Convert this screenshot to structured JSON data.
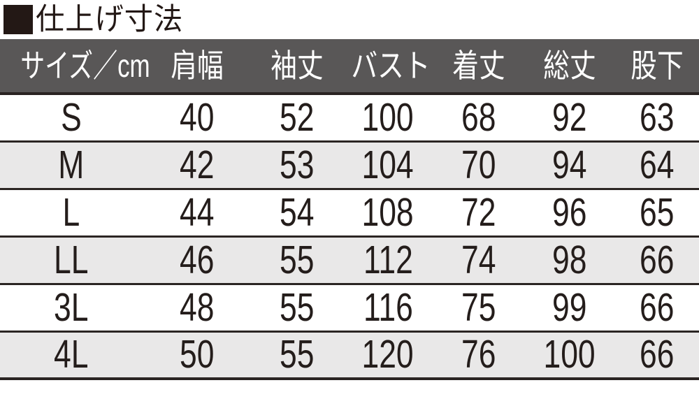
{
  "header": {
    "marker": "■",
    "title": "仕上げ寸法"
  },
  "colors": {
    "title_text": "#231815",
    "table_header_bg": "#595757",
    "table_header_text": "#ffffff",
    "row_bg_white": "#ffffff",
    "row_bg_alt": "#e9e8e8",
    "separator_line": "#2b2523",
    "value_text": "#241d1b"
  },
  "chart_data": {
    "type": "table",
    "title": "仕上げ寸法",
    "unit": "cm",
    "columns": [
      "サイズ／cm",
      "肩幅",
      "袖丈",
      "バスト",
      "着丈",
      "総丈",
      "股下"
    ],
    "rows": [
      [
        "S",
        "40",
        "52",
        "100",
        "68",
        "92",
        "63"
      ],
      [
        "M",
        "42",
        "53",
        "104",
        "70",
        "94",
        "64"
      ],
      [
        "L",
        "44",
        "54",
        "108",
        "72",
        "96",
        "65"
      ],
      [
        "LL",
        "46",
        "55",
        "112",
        "74",
        "98",
        "66"
      ],
      [
        "3L",
        "48",
        "55",
        "116",
        "75",
        "99",
        "66"
      ],
      [
        "4L",
        "50",
        "55",
        "120",
        "76",
        "100",
        "66"
      ]
    ]
  }
}
